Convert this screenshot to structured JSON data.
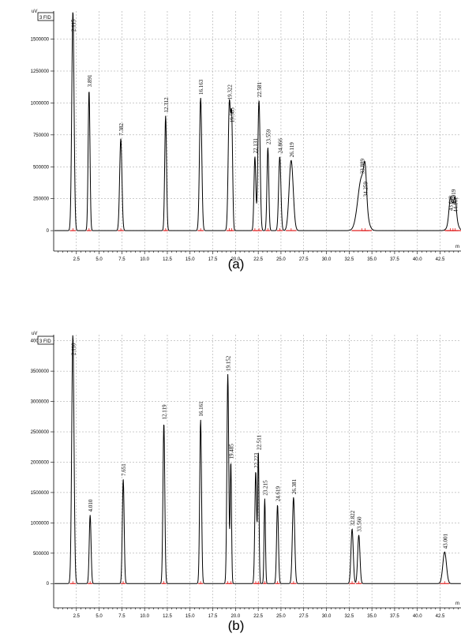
{
  "chart_data": [
    {
      "type": "line",
      "panel_label": "(a)",
      "y_unit": "uV",
      "x_unit": "m",
      "legend_box": "3 FID",
      "ylim": [
        -160000,
        1720000
      ],
      "xlim": [
        0,
        44.8
      ],
      "y_ticks": [
        0,
        250000,
        500000,
        750000,
        1000000,
        1250000,
        1500000
      ],
      "y_tick_labels": [
        "0",
        "250000",
        "500000",
        "750000",
        "1000000",
        "1250000",
        "1500000"
      ],
      "x_ticks": [
        2.5,
        5.0,
        7.5,
        10.0,
        12.5,
        15.0,
        17.5,
        20.0,
        22.5,
        25.0,
        27.5,
        30.0,
        32.5,
        35.0,
        37.5,
        40.0,
        42.5
      ],
      "x_tick_labels": [
        "2.5",
        "5.0",
        "7.5",
        "10.0",
        "12.5",
        "15.0",
        "17.5",
        "20.0",
        "22.5",
        "25.0",
        "27.5",
        "30.0",
        "32.5",
        "35.0",
        "37.5",
        "40.0",
        "42.5"
      ],
      "grid": true,
      "peaks": [
        {
          "rt": 2.115,
          "label": "2.115",
          "height": 1720000,
          "width": 0.5
        },
        {
          "rt": 3.891,
          "label": "3.891",
          "height": 1100000,
          "width": 0.4
        },
        {
          "rt": 7.382,
          "label": "7.382",
          "height": 720000,
          "width": 0.5
        },
        {
          "rt": 12.312,
          "label": "12.312",
          "height": 900000,
          "width": 0.4
        },
        {
          "rt": 16.163,
          "label": "16.163",
          "height": 1040000,
          "width": 0.5
        },
        {
          "rt": 19.322,
          "label": "19.322",
          "height": 1000000,
          "width": 0.5
        },
        {
          "rt": 19.585,
          "label": "19.585",
          "height": 820000,
          "width": 0.4
        },
        {
          "rt": 22.581,
          "label": "22.581",
          "height": 1020000,
          "width": 0.5
        },
        {
          "rt": 22.131,
          "label": "22.131",
          "height": 580000,
          "width": 0.4
        },
        {
          "rt": 23.559,
          "label": "23.559",
          "height": 650000,
          "width": 0.4
        },
        {
          "rt": 24.866,
          "label": "24.866",
          "height": 580000,
          "width": 0.5
        },
        {
          "rt": 26.119,
          "label": "26.119",
          "height": 550000,
          "width": 0.9
        },
        {
          "rt": 33.889,
          "label": "33.889",
          "height": 420000,
          "width": 1.7
        },
        {
          "rt": 34.259,
          "label": "34.259",
          "height": 240000,
          "width": 0.6
        },
        {
          "rt": 43.919,
          "label": "43.919",
          "height": 180000,
          "width": 1.4
        },
        {
          "rt": 44.161,
          "label": "44.161",
          "height": 120000,
          "width": 0.5
        },
        {
          "rt": 43.619,
          "label": "43.619",
          "height": 130000,
          "width": 0.6
        }
      ]
    },
    {
      "type": "line",
      "panel_label": "(b)",
      "y_unit": "uV",
      "x_unit": "m",
      "legend_box": "3 FID",
      "ylim": [
        -400000,
        4100000
      ],
      "xlim": [
        0,
        44.8
      ],
      "y_ticks": [
        0,
        500000,
        1000000,
        1500000,
        2000000,
        2500000,
        3000000,
        3500000,
        4000000
      ],
      "y_tick_labels": [
        "0",
        "500000",
        "1000000",
        "1500000",
        "2000000",
        "2500000",
        "3000000",
        "3500000",
        "4000000"
      ],
      "x_ticks": [
        2.5,
        5.0,
        7.5,
        10.0,
        12.5,
        15.0,
        17.5,
        20.0,
        22.5,
        25.0,
        27.5,
        30.0,
        32.5,
        35.0,
        37.5,
        40.0,
        42.5
      ],
      "x_tick_labels": [
        "2.5",
        "5.0",
        "7.5",
        "10.0",
        "12.5",
        "15.0",
        "17.5",
        "20.0",
        "22.5",
        "25.0",
        "27.5",
        "30.0",
        "32.5",
        "35.0",
        "37.5",
        "40.0",
        "42.5"
      ],
      "grid": true,
      "peaks": [
        {
          "rt": 2.11,
          "label": "2.110",
          "height": 4100000,
          "width": 0.5
        },
        {
          "rt": 4.01,
          "label": "4.010",
          "height": 1130000,
          "width": 0.4
        },
        {
          "rt": 7.651,
          "label": "7.651",
          "height": 1720000,
          "width": 0.4
        },
        {
          "rt": 12.119,
          "label": "12.119",
          "height": 2650000,
          "width": 0.4
        },
        {
          "rt": 16.161,
          "label": "16.161",
          "height": 2700000,
          "width": 0.4
        },
        {
          "rt": 19.152,
          "label": "19.152",
          "height": 3450000,
          "width": 0.4
        },
        {
          "rt": 19.485,
          "label": "19.485",
          "height": 2000000,
          "width": 0.3
        },
        {
          "rt": 22.223,
          "label": "22.223",
          "height": 1850000,
          "width": 0.4
        },
        {
          "rt": 22.511,
          "label": "22.511",
          "height": 2150000,
          "width": 0.3
        },
        {
          "rt": 23.215,
          "label": "23.215",
          "height": 1400000,
          "width": 0.3
        },
        {
          "rt": 24.619,
          "label": "24.619",
          "height": 1300000,
          "width": 0.4
        },
        {
          "rt": 26.381,
          "label": "26.381",
          "height": 1420000,
          "width": 0.5
        },
        {
          "rt": 32.822,
          "label": "32.822",
          "height": 900000,
          "width": 0.5
        },
        {
          "rt": 33.56,
          "label": "33.560",
          "height": 800000,
          "width": 0.5
        },
        {
          "rt": 43.001,
          "label": "43.001",
          "height": 520000,
          "width": 0.8
        }
      ]
    }
  ]
}
